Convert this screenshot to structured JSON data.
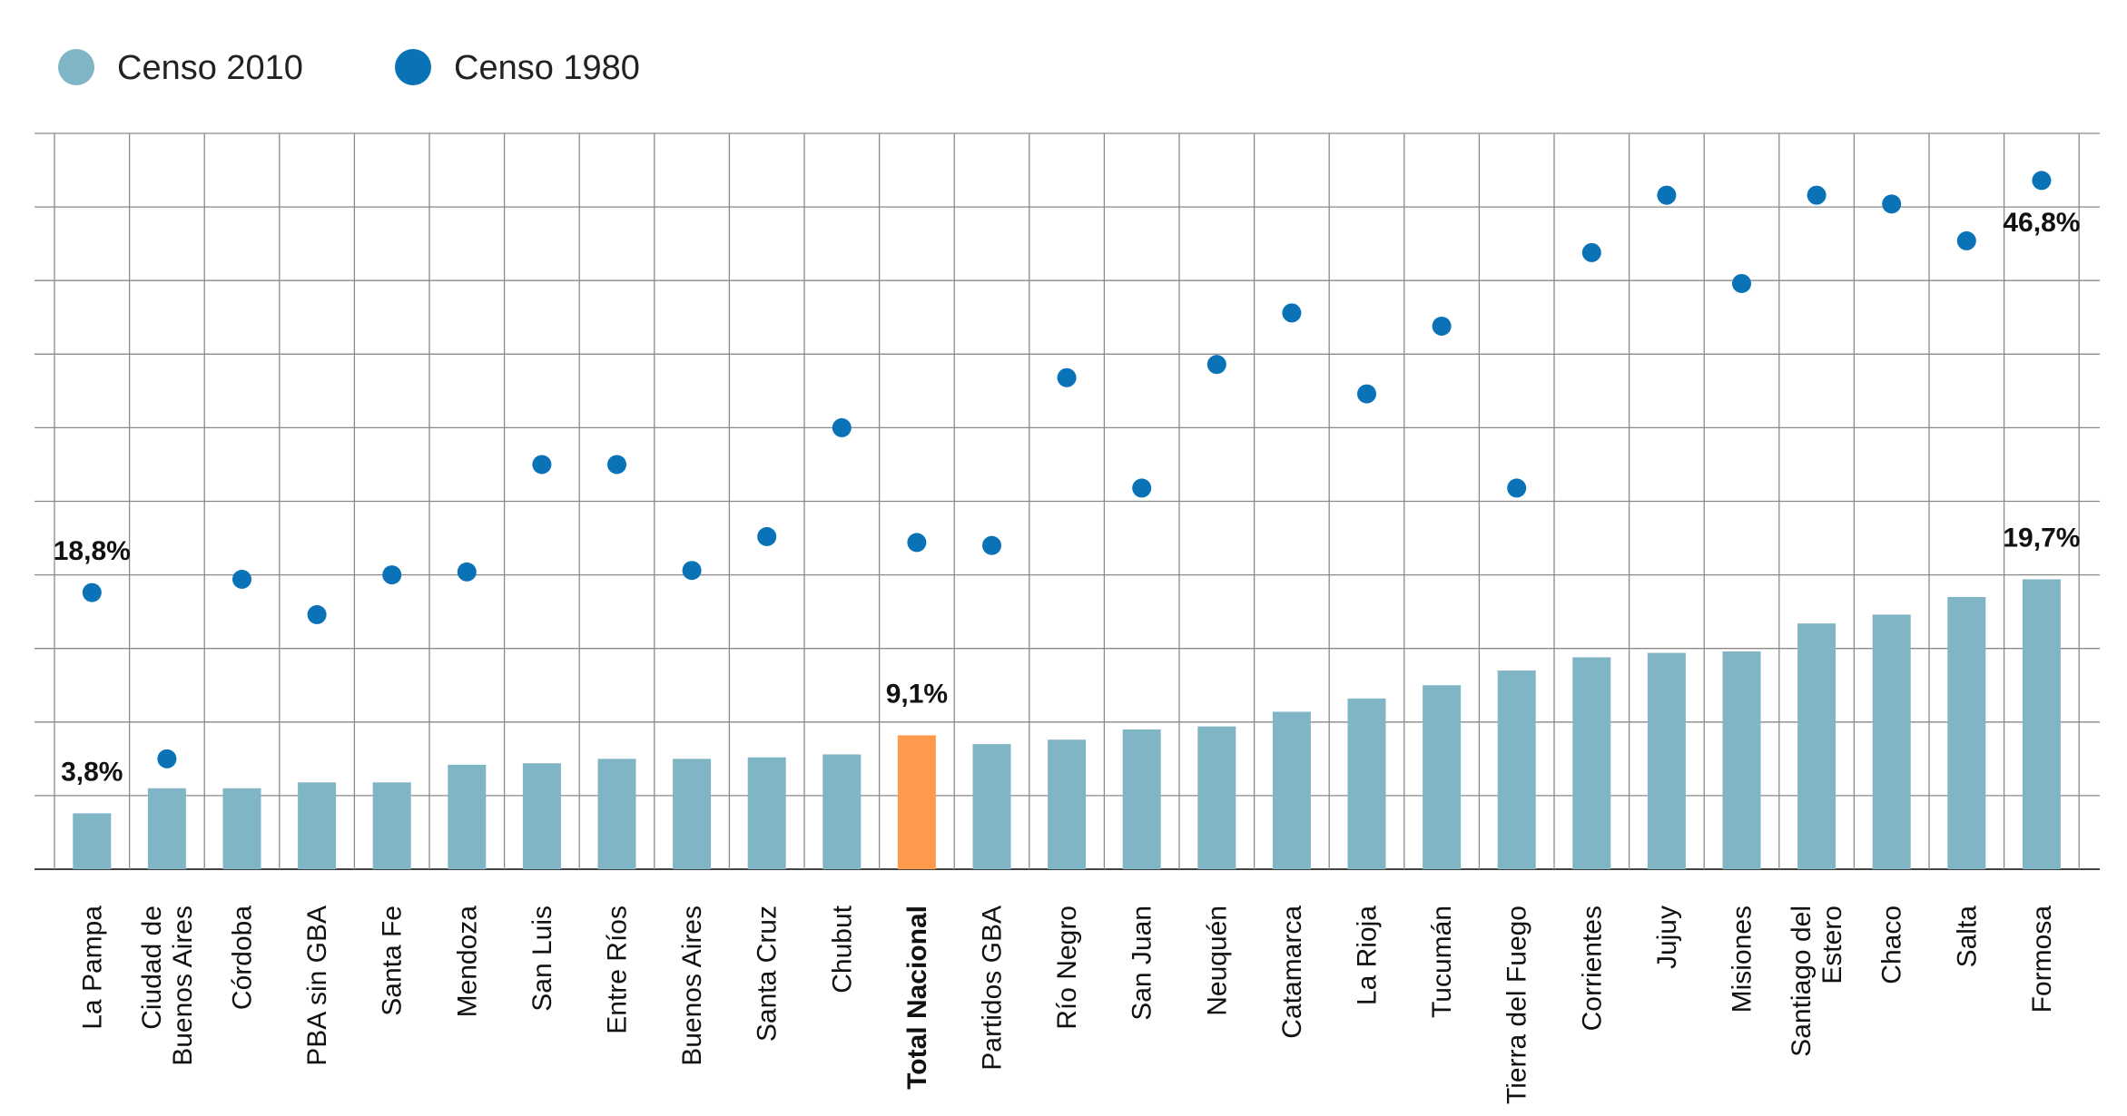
{
  "legend": [
    {
      "label": "Censo 2010",
      "color": "#7fb5c4"
    },
    {
      "label": "Censo 1980",
      "color": "#0a72b6"
    }
  ],
  "colors": {
    "bar": "#7fb5c4",
    "highlight_bar": "#ff9a4d",
    "dot": "#0a72b6",
    "grid": "#8a8a8a"
  },
  "chart_data": {
    "type": "bar",
    "categories": [
      "La Pampa",
      "Ciudad de Buenos Aires",
      "Córdoba",
      "PBA sin GBA",
      "Santa Fe",
      "Mendoza",
      "San Luis",
      "Entre Ríos",
      "Buenos Aires",
      "Santa Cruz",
      "Chubut",
      "Total Nacional",
      "Partidos GBA",
      "Río Negro",
      "San Juan",
      "Neuquén",
      "Catamarca",
      "La Rioja",
      "Tucumán",
      "Tierra del Fuego",
      "Corrientes",
      "Jujuy",
      "Misiones",
      "Santiago del Estero",
      "Chaco",
      "Salta",
      "Formosa"
    ],
    "highlight_category": "Total Nacional",
    "ylim": [
      0,
      50
    ],
    "grid_step": 5,
    "grid": true,
    "legend_position": "top-left",
    "series": [
      {
        "name": "Censo 2010",
        "kind": "bar",
        "values": [
          3.8,
          5.5,
          5.5,
          5.9,
          5.9,
          7.1,
          7.2,
          7.5,
          7.5,
          7.6,
          7.8,
          9.1,
          8.5,
          8.8,
          9.5,
          9.7,
          10.7,
          11.6,
          12.5,
          13.5,
          14.4,
          14.7,
          14.8,
          16.7,
          17.3,
          18.5,
          19.7
        ]
      },
      {
        "name": "Censo 1980",
        "kind": "dot",
        "values": [
          18.8,
          7.5,
          19.7,
          17.3,
          20.0,
          20.2,
          27.5,
          27.5,
          20.3,
          22.6,
          30.0,
          22.2,
          22.0,
          33.4,
          25.9,
          34.3,
          37.8,
          32.3,
          36.9,
          25.9,
          41.9,
          45.8,
          39.8,
          45.8,
          45.2,
          42.7,
          46.8
        ]
      }
    ],
    "annotations": [
      {
        "category": "La Pampa",
        "series": "Censo 2010",
        "text": "3,8%"
      },
      {
        "category": "La Pampa",
        "series": "Censo 1980",
        "text": "18,8%"
      },
      {
        "category": "Total Nacional",
        "series": "Censo 2010",
        "text": "9,1%"
      },
      {
        "category": "Formosa",
        "series": "Censo 2010",
        "text": "19,7%"
      },
      {
        "category": "Formosa",
        "series": "Censo 1980",
        "text": "46,8%"
      }
    ],
    "category_label_lines": {
      "Ciudad de Buenos Aires": [
        "Ciudad de",
        "Buenos Aires"
      ],
      "Santiago del Estero": [
        "Santiago del",
        "Estero"
      ]
    }
  }
}
